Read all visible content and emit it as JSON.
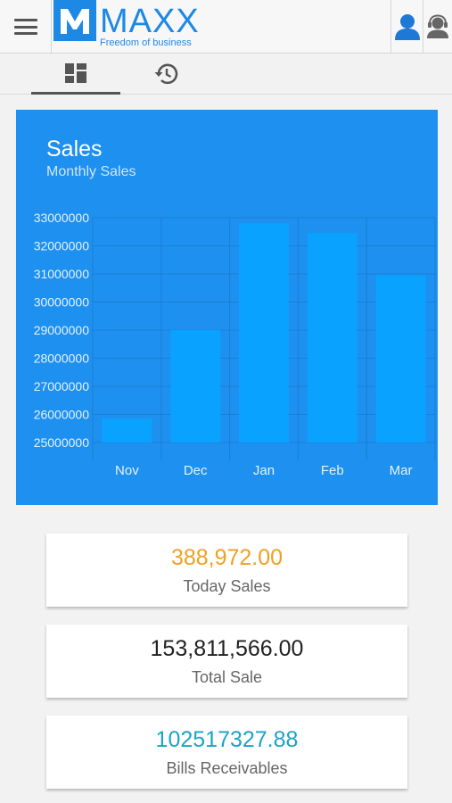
{
  "header": {
    "menu_icon": "hamburger-menu-icon",
    "logo_letter": "M",
    "brand": "MAXX",
    "tagline": "Freedom of business",
    "user_icon": "user-icon",
    "support_icon": "support-agent-icon",
    "brand_color": "#1e88e5"
  },
  "tabs": [
    {
      "icon": "dashboard-icon",
      "active": true
    },
    {
      "icon": "history-icon",
      "active": false
    }
  ],
  "chart_card": {
    "title": "Sales",
    "subtitle": "Monthly Sales",
    "background": "#1e90ef",
    "bar_color": "#0aa2ff"
  },
  "chart_data": {
    "type": "bar",
    "title": "Sales",
    "subtitle": "Monthly Sales",
    "categories": [
      "Nov",
      "Dec",
      "Jan",
      "Feb",
      "Mar"
    ],
    "values": [
      25850000,
      29000000,
      32800000,
      32450000,
      30950000
    ],
    "yticks": [
      "25000000",
      "26000000",
      "27000000",
      "28000000",
      "29000000",
      "30000000",
      "31000000",
      "32000000",
      "33000000"
    ],
    "ylim": [
      25000000,
      33000000
    ],
    "xlabel": "",
    "ylabel": "",
    "grid": true
  },
  "stats": [
    {
      "value": "388,972.00",
      "label": "Today Sales",
      "color": "#f0a020"
    },
    {
      "value": "153,811,566.00",
      "label": "Total Sale",
      "color": "#222222"
    },
    {
      "value": "102517327.88",
      "label": "Bills Receivables",
      "color": "#1aa3c8"
    }
  ]
}
